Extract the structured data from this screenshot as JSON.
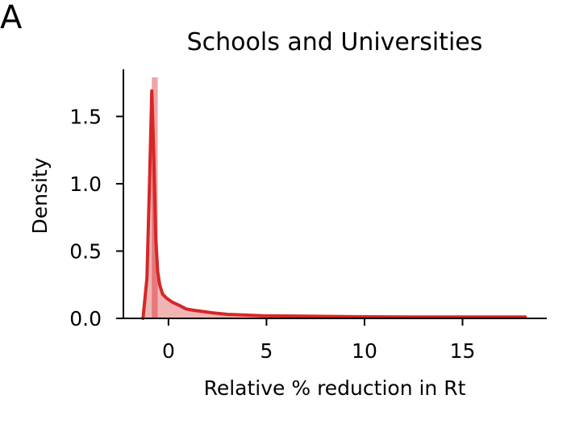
{
  "panel_label": "A",
  "chart_data": {
    "type": "histogram-density",
    "title": "Schools and Universities",
    "xlabel": "Relative % reduction in Rt",
    "ylabel": "Density",
    "xlim": [
      -2.3,
      19.3
    ],
    "ylim": [
      0.0,
      1.85
    ],
    "xticks": [
      0,
      5,
      10,
      15
    ],
    "xtick_labels": [
      "0",
      "5",
      "10",
      "15"
    ],
    "yticks": [
      0.0,
      0.5,
      1.0,
      1.5
    ],
    "ytick_labels": [
      "0.0",
      "0.5",
      "1.0",
      "1.5"
    ],
    "grid": false,
    "colors": {
      "line": "#d62728",
      "bars": "#eea4a6"
    },
    "histogram": [
      {
        "x0": -0.85,
        "x1": -0.55,
        "density": 1.79
      },
      {
        "x0": -0.55,
        "x1": 18.2,
        "density": 0.0
      }
    ],
    "kde": {
      "x": [
        -1.3,
        -1.1,
        -0.95,
        -0.85,
        -0.75,
        -0.65,
        -0.55,
        -0.45,
        -0.3,
        -0.1,
        0.2,
        0.5,
        0.9,
        1.3,
        1.8,
        2.3,
        3.0,
        3.8,
        4.8,
        6.0,
        8.0,
        10.0,
        13.0,
        16.0,
        18.2
      ],
      "y": [
        0.0,
        0.3,
        1.1,
        1.69,
        1.2,
        0.6,
        0.35,
        0.25,
        0.18,
        0.15,
        0.12,
        0.1,
        0.07,
        0.06,
        0.05,
        0.04,
        0.03,
        0.025,
        0.02,
        0.018,
        0.015,
        0.012,
        0.01,
        0.01,
        0.01
      ]
    }
  }
}
